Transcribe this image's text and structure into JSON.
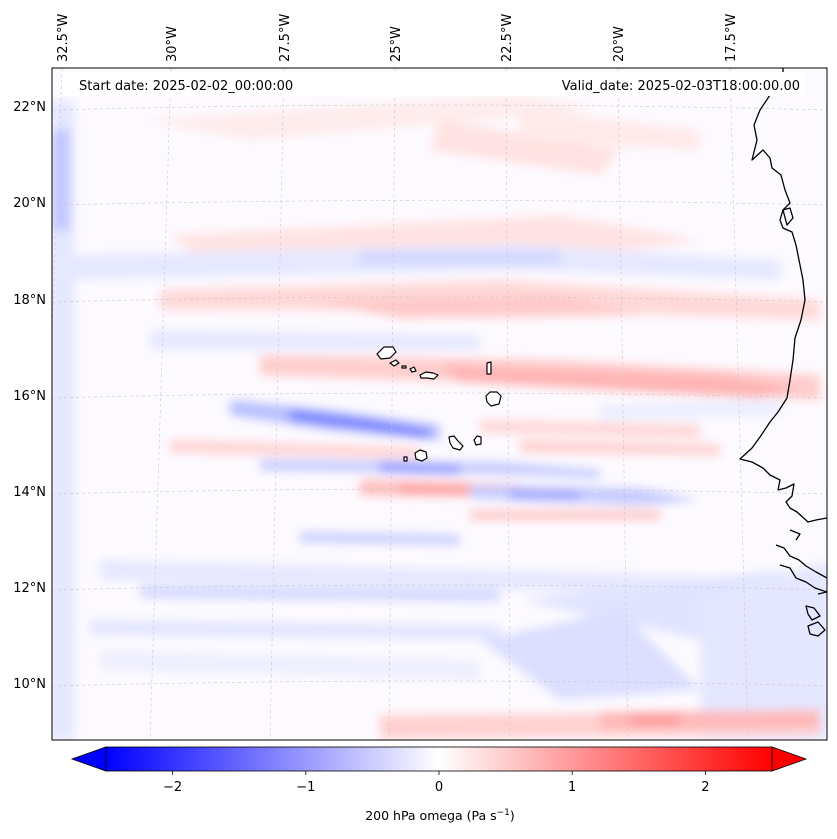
{
  "map": {
    "start_date_label": "Start date: 2025-02-02_00:00:00",
    "valid_date_label": "Valid_date: 2025-02-03T18:00:00.00",
    "longitude_labels": [
      "32.5°W",
      "30°W",
      "27.5°W",
      "25°W",
      "22.5°W",
      "20°W",
      "17.5°W"
    ],
    "latitude_labels": [
      "22°N",
      "20°N",
      "18°N",
      "16°N",
      "14°N",
      "12°N",
      "10°N"
    ],
    "islands": "Cape Verde",
    "coastline": "West Africa (Mauritania, Senegal, Gambia, Guinea-Bissau)"
  },
  "colorbar": {
    "tick_labels": [
      "−2",
      "−1",
      "0",
      "1",
      "2"
    ],
    "tick_values": [
      -2,
      -1,
      0,
      1,
      2
    ],
    "vmin": -2.5,
    "vmax": 2.5,
    "label_prefix": "200 hPa omega (Pa s",
    "label_exp": "−1",
    "label_suffix": ")",
    "colormap": "bwr",
    "color_low": "#0000ff",
    "color_mid": "#ffffff",
    "color_high": "#ff0000"
  }
}
